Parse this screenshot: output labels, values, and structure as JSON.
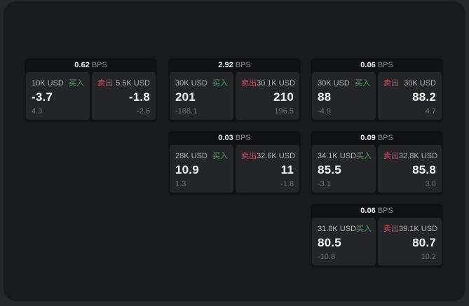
{
  "labels": {
    "buy": "买入",
    "sell": "卖出",
    "bps": "BPS"
  },
  "colors": {
    "buy_green": "#43a45e",
    "sell_red": "#cd4f68",
    "window_bg": "#191a1d",
    "panel_bg": "#242529"
  },
  "cards": [
    {
      "row": 0,
      "col": 0,
      "bps": "0.62",
      "buy": {
        "usd": "10K USD",
        "value": "-3.7",
        "sub": "4.3"
      },
      "sell": {
        "usd": "5.5K USD",
        "value": "-1.8",
        "sub": "-2.6"
      }
    },
    {
      "row": 0,
      "col": 1,
      "bps": "2.92",
      "buy": {
        "usd": "30K USD",
        "value": "201",
        "sub": "-188.1"
      },
      "sell": {
        "usd": "30.1K USD",
        "value": "210",
        "sub": "196.5"
      }
    },
    {
      "row": 0,
      "col": 2,
      "bps": "0.06",
      "buy": {
        "usd": "30K USD",
        "value": "88",
        "sub": "-4.9"
      },
      "sell": {
        "usd": "30K USD",
        "value": "88.2",
        "sub": "4.7"
      }
    },
    {
      "row": 1,
      "col": 1,
      "bps": "0.03",
      "buy": {
        "usd": "28K USD",
        "value": "10.9",
        "sub": "1.3"
      },
      "sell": {
        "usd": "32.6K USD",
        "value": "11",
        "sub": "-1.8"
      }
    },
    {
      "row": 1,
      "col": 2,
      "bps": "0.09",
      "buy": {
        "usd": "34.1K USD",
        "value": "85.5",
        "sub": "-3.1"
      },
      "sell": {
        "usd": "32.8K USD",
        "value": "85.8",
        "sub": "3.0"
      }
    },
    {
      "row": 2,
      "col": 2,
      "bps": "0.06",
      "buy": {
        "usd": "31.8K USD",
        "value": "80.5",
        "sub": "-10.8"
      },
      "sell": {
        "usd": "39.1K USD",
        "value": "80.7",
        "sub": "10.2"
      }
    }
  ]
}
